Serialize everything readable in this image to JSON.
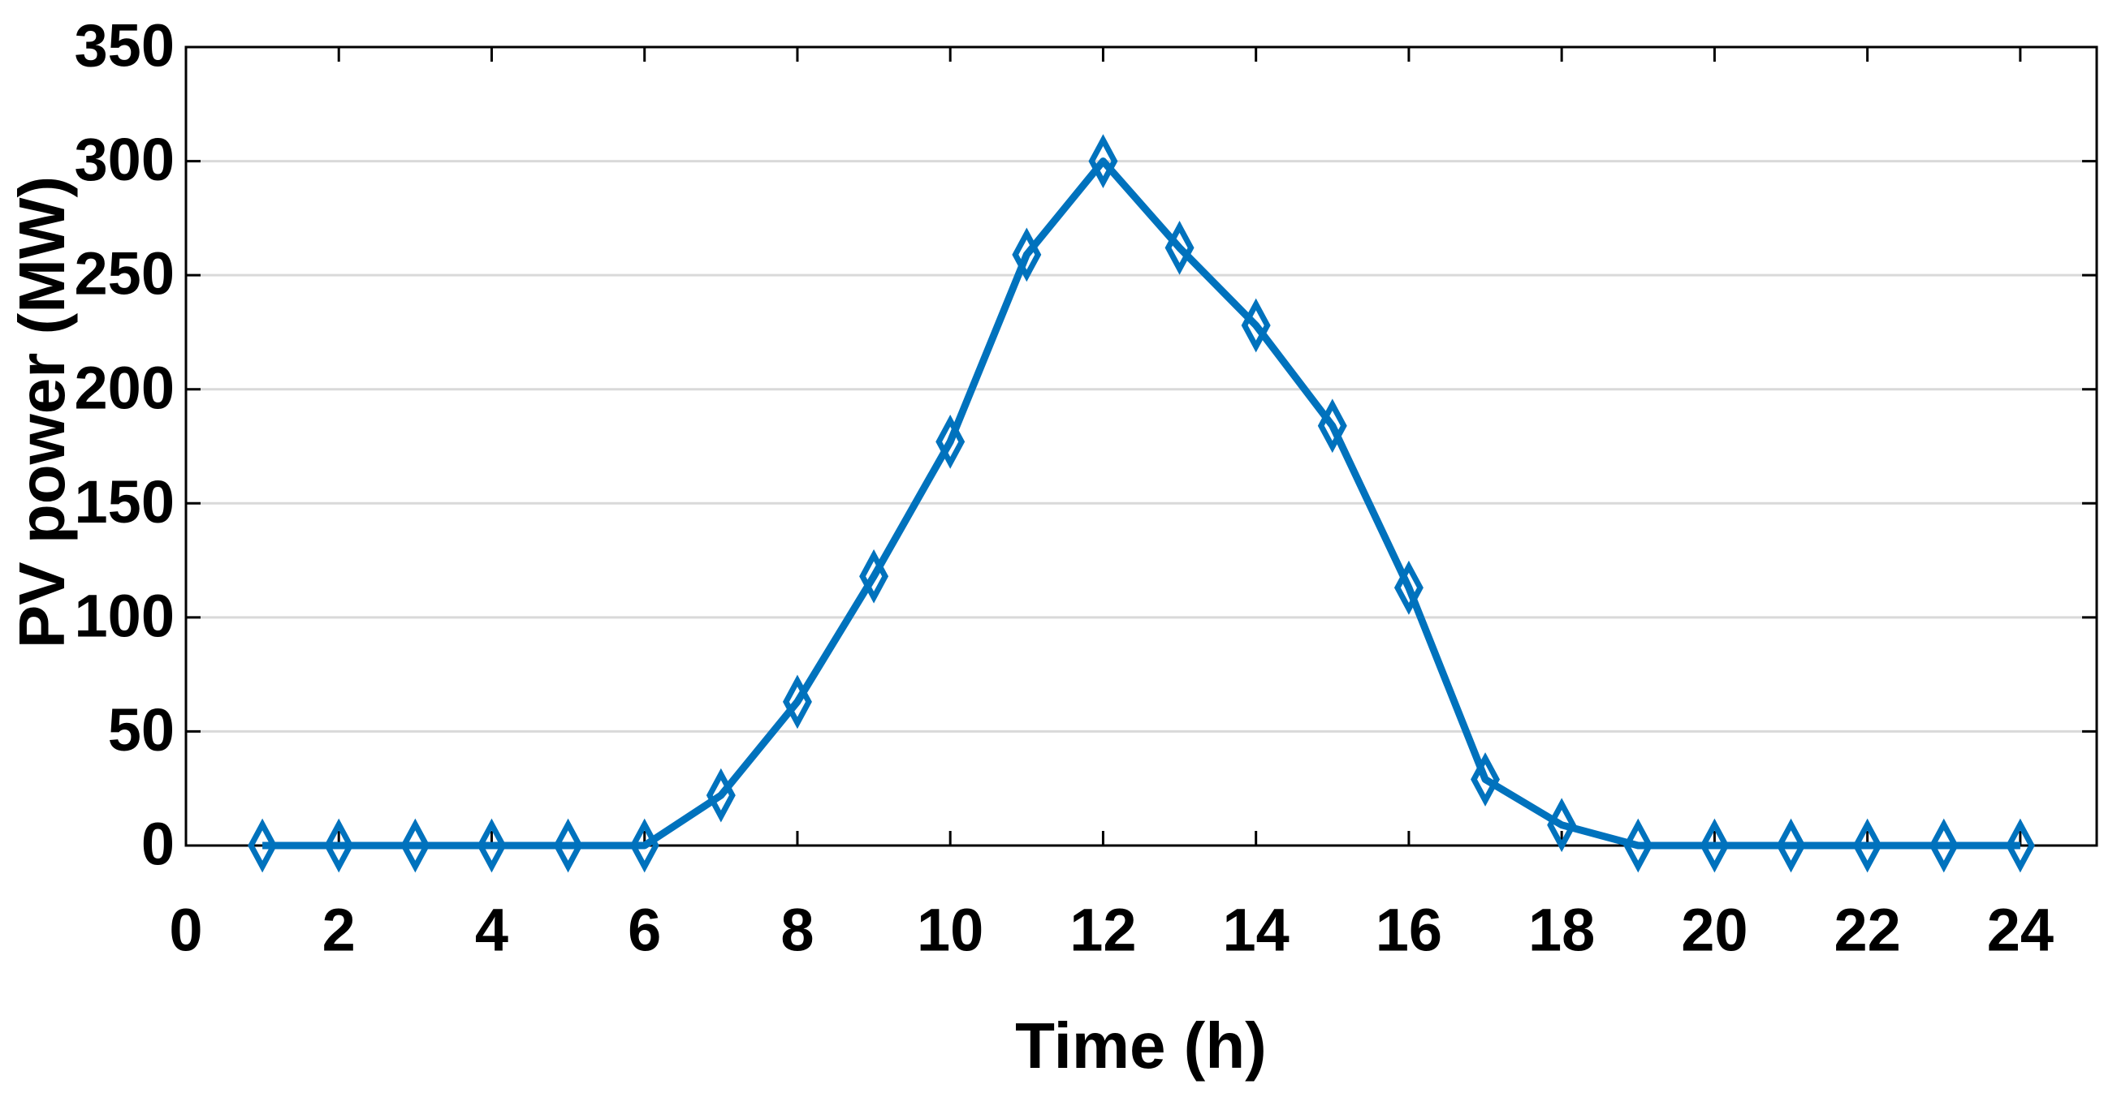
{
  "chart_data": {
    "type": "line",
    "xlabel": "Time (h)",
    "ylabel": "PV power (MW)",
    "x": [
      1,
      2,
      3,
      4,
      5,
      6,
      7,
      8,
      9,
      10,
      11,
      12,
      13,
      14,
      15,
      16,
      17,
      18,
      19,
      20,
      21,
      22,
      23,
      24
    ],
    "values": [
      0,
      0,
      0,
      0,
      0,
      0,
      22,
      63,
      118,
      177,
      259,
      300,
      262,
      228,
      184,
      113,
      29,
      9,
      0,
      0,
      0,
      0,
      0,
      0
    ],
    "color": "#0072bd",
    "marker": "diamond",
    "xlim": [
      0,
      25
    ],
    "xticks": [
      0,
      2,
      4,
      6,
      8,
      10,
      12,
      14,
      16,
      18,
      20,
      22,
      24
    ],
    "ylim": [
      0,
      350
    ],
    "yticks": [
      0,
      50,
      100,
      150,
      200,
      250,
      300,
      350
    ],
    "grid": true
  }
}
